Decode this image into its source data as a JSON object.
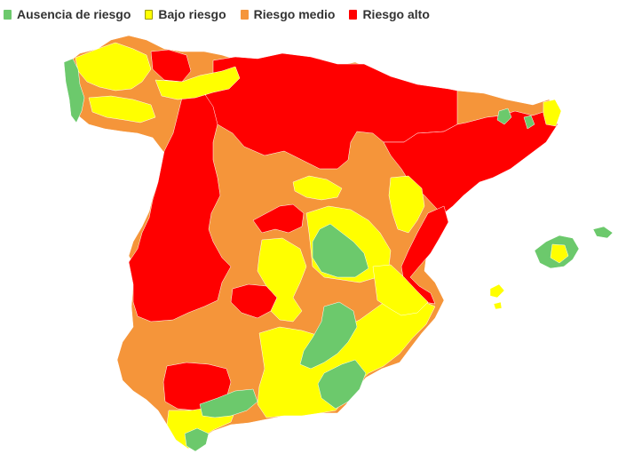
{
  "legend": {
    "items": [
      {
        "label": "Ausencia de riesgo",
        "color": "#6cc96c",
        "icon": "square-swatch-icon"
      },
      {
        "label": "Bajo riesgo",
        "color": "#ffff00",
        "icon": "square-swatch-icon"
      },
      {
        "label": "Riesgo medio",
        "color": "#f5953a",
        "icon": "square-swatch-icon"
      },
      {
        "label": "Riesgo alto",
        "color": "#ff0000",
        "icon": "square-swatch-icon"
      }
    ]
  },
  "map": {
    "region": "Spain (mainland + Balearic Islands)",
    "categories": [
      "Ausencia de riesgo",
      "Bajo riesgo",
      "Riesgo medio",
      "Riesgo alto"
    ]
  }
}
